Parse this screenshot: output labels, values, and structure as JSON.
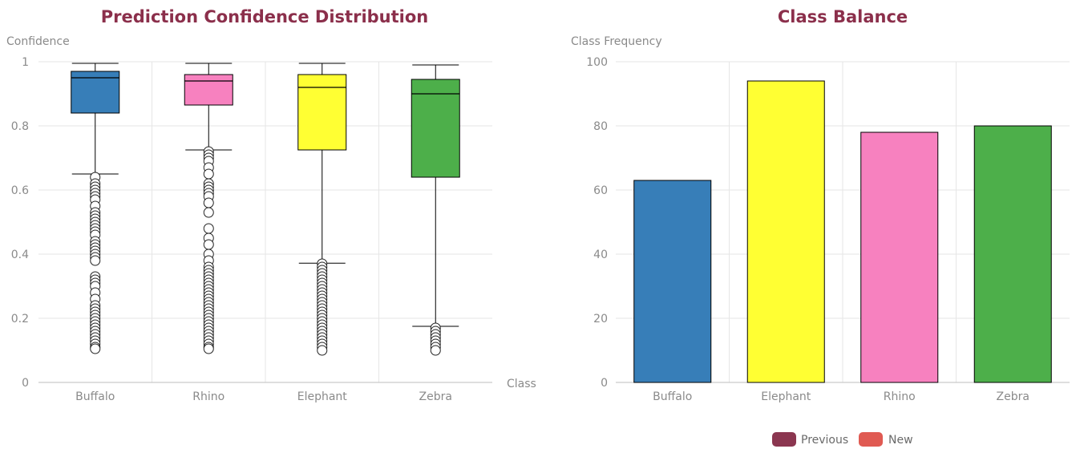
{
  "colors": {
    "title": "#8b2f4b",
    "grid": "#e6e6e6",
    "axis_text": "#8a8a8a"
  },
  "chart_data": [
    {
      "type": "box",
      "title": "Prediction Confidence Distribution",
      "xlabel": "Class",
      "ylabel": "Confidence",
      "ylim": [
        0,
        1
      ],
      "yticks": [
        "0",
        "0.2",
        "0.4",
        "0.6",
        "0.8",
        "1"
      ],
      "categories": [
        "Buffalo",
        "Rhino",
        "Elephant",
        "Zebra"
      ],
      "boxes": [
        {
          "name": "Buffalo",
          "color": "#377eb8",
          "whisker_low": 0.65,
          "q1": 0.84,
          "median": 0.95,
          "q3": 0.97,
          "whisker_high": 0.995,
          "outliers": [
            0.64,
            0.62,
            0.61,
            0.6,
            0.59,
            0.58,
            0.57,
            0.55,
            0.53,
            0.52,
            0.51,
            0.5,
            0.49,
            0.48,
            0.47,
            0.46,
            0.44,
            0.43,
            0.42,
            0.41,
            0.4,
            0.39,
            0.38,
            0.33,
            0.32,
            0.31,
            0.3,
            0.28,
            0.26,
            0.24,
            0.23,
            0.22,
            0.21,
            0.2,
            0.19,
            0.18,
            0.17,
            0.16,
            0.15,
            0.14,
            0.13,
            0.12,
            0.11,
            0.105
          ]
        },
        {
          "name": "Rhino",
          "color": "#f781bf",
          "whisker_low": 0.725,
          "q1": 0.865,
          "median": 0.94,
          "q3": 0.96,
          "whisker_high": 0.995,
          "outliers": [
            0.72,
            0.71,
            0.7,
            0.69,
            0.67,
            0.65,
            0.62,
            0.61,
            0.6,
            0.59,
            0.58,
            0.56,
            0.53,
            0.48,
            0.45,
            0.43,
            0.4,
            0.38,
            0.36,
            0.35,
            0.34,
            0.33,
            0.32,
            0.31,
            0.3,
            0.29,
            0.28,
            0.27,
            0.26,
            0.25,
            0.24,
            0.23,
            0.22,
            0.21,
            0.2,
            0.19,
            0.18,
            0.17,
            0.16,
            0.15,
            0.14,
            0.13,
            0.12,
            0.11,
            0.105
          ]
        },
        {
          "name": "Elephant",
          "color": "#ffff33",
          "whisker_low": 0.372,
          "q1": 0.725,
          "median": 0.92,
          "q3": 0.96,
          "whisker_high": 0.995,
          "outliers": [
            0.37,
            0.36,
            0.35,
            0.34,
            0.33,
            0.32,
            0.31,
            0.3,
            0.29,
            0.28,
            0.27,
            0.26,
            0.25,
            0.24,
            0.23,
            0.22,
            0.21,
            0.2,
            0.19,
            0.18,
            0.17,
            0.16,
            0.15,
            0.14,
            0.13,
            0.12,
            0.11,
            0.1
          ]
        },
        {
          "name": "Zebra",
          "color": "#4daf4a",
          "whisker_low": 0.175,
          "q1": 0.64,
          "median": 0.9,
          "q3": 0.945,
          "whisker_high": 0.99,
          "outliers": [
            0.17,
            0.16,
            0.15,
            0.14,
            0.13,
            0.12,
            0.11,
            0.1
          ]
        }
      ]
    },
    {
      "type": "bar",
      "title": "Class Balance",
      "xlabel": "",
      "ylabel": "Class Frequency",
      "ylim": [
        0,
        100
      ],
      "yticks": [
        "0",
        "20",
        "40",
        "60",
        "80",
        "100"
      ],
      "categories": [
        "Buffalo",
        "Elephant",
        "Rhino",
        "Zebra"
      ],
      "values": [
        63,
        94,
        78,
        80
      ],
      "bar_colors": [
        "#377eb8",
        "#ffff33",
        "#f781bf",
        "#4daf4a"
      ],
      "legend": [
        {
          "label": "Previous",
          "color": "#8b3650"
        },
        {
          "label": "New",
          "color": "#e05a52"
        }
      ]
    }
  ]
}
